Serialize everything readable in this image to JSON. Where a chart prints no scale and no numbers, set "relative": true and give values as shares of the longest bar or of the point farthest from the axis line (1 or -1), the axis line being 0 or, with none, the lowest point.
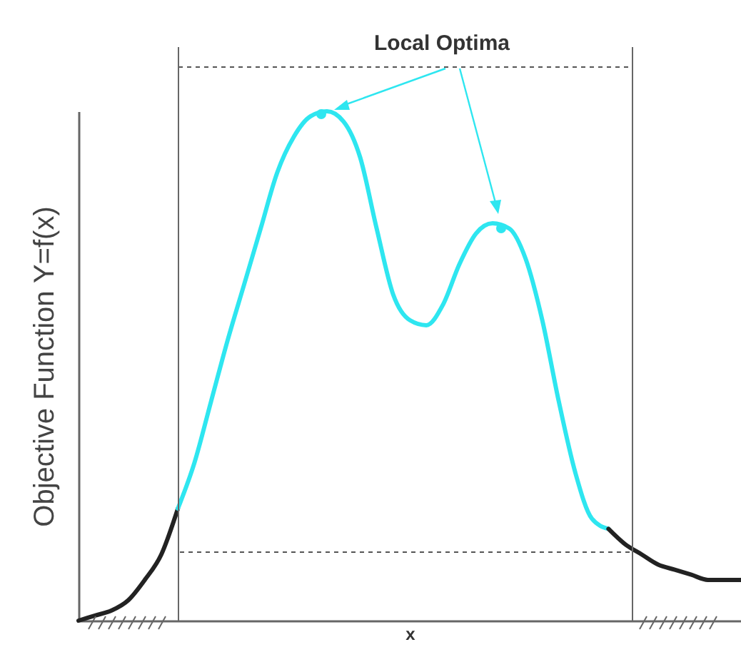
{
  "chart_data": {
    "type": "line",
    "relative": true,
    "xlabel": "x",
    "ylabel": "Objective Function Y=f(x)",
    "annotations": [
      "Local Optima"
    ],
    "line_style": "solid",
    "categories": [
      null,
      null,
      null,
      null,
      null,
      null,
      null,
      null,
      null,
      null,
      null,
      null,
      null,
      null,
      null,
      null,
      null,
      null,
      null,
      null,
      null,
      null,
      null,
      null,
      null,
      null,
      null,
      null,
      null,
      null,
      null,
      null,
      null,
      null,
      null,
      null,
      null,
      null,
      null,
      null,
      null
    ],
    "series": [
      {
        "color": "#222222",
        "values": [
          0,
          0.01,
          0.02,
          0.04,
          0.08,
          0.13,
          0.22,
          null,
          null,
          null,
          null,
          null,
          null,
          null,
          null,
          null,
          null,
          null,
          null,
          null,
          null,
          null,
          null,
          null,
          null,
          null,
          null,
          null,
          null,
          null,
          null,
          null,
          null,
          null,
          null,
          null,
          null,
          null,
          null,
          null,
          null
        ]
      },
      {
        "color": "#2ee6f0",
        "values": [
          null,
          null,
          null,
          null,
          null,
          null,
          0.22,
          0.31,
          0.43,
          0.55,
          0.66,
          0.77,
          0.88,
          0.95,
          0.99,
          1,
          0.98,
          0.91,
          0.77,
          0.64,
          0.59,
          0.58,
          0.62,
          0.7,
          0.76,
          0.78,
          0.77,
          0.71,
          0.59,
          0.43,
          0.29,
          0.2,
          0.18,
          null,
          null,
          null,
          null,
          null,
          null,
          null,
          null
        ]
      },
      {
        "color": "#222222",
        "values": [
          null,
          null,
          null,
          null,
          null,
          null,
          null,
          null,
          null,
          null,
          null,
          null,
          null,
          null,
          null,
          null,
          null,
          null,
          null,
          null,
          null,
          null,
          null,
          null,
          null,
          null,
          null,
          null,
          null,
          null,
          null,
          null,
          0.18,
          0.15,
          0.13,
          0.11,
          0.1,
          0.09,
          0.08,
          0.08,
          0.08
        ]
      }
    ]
  }
}
